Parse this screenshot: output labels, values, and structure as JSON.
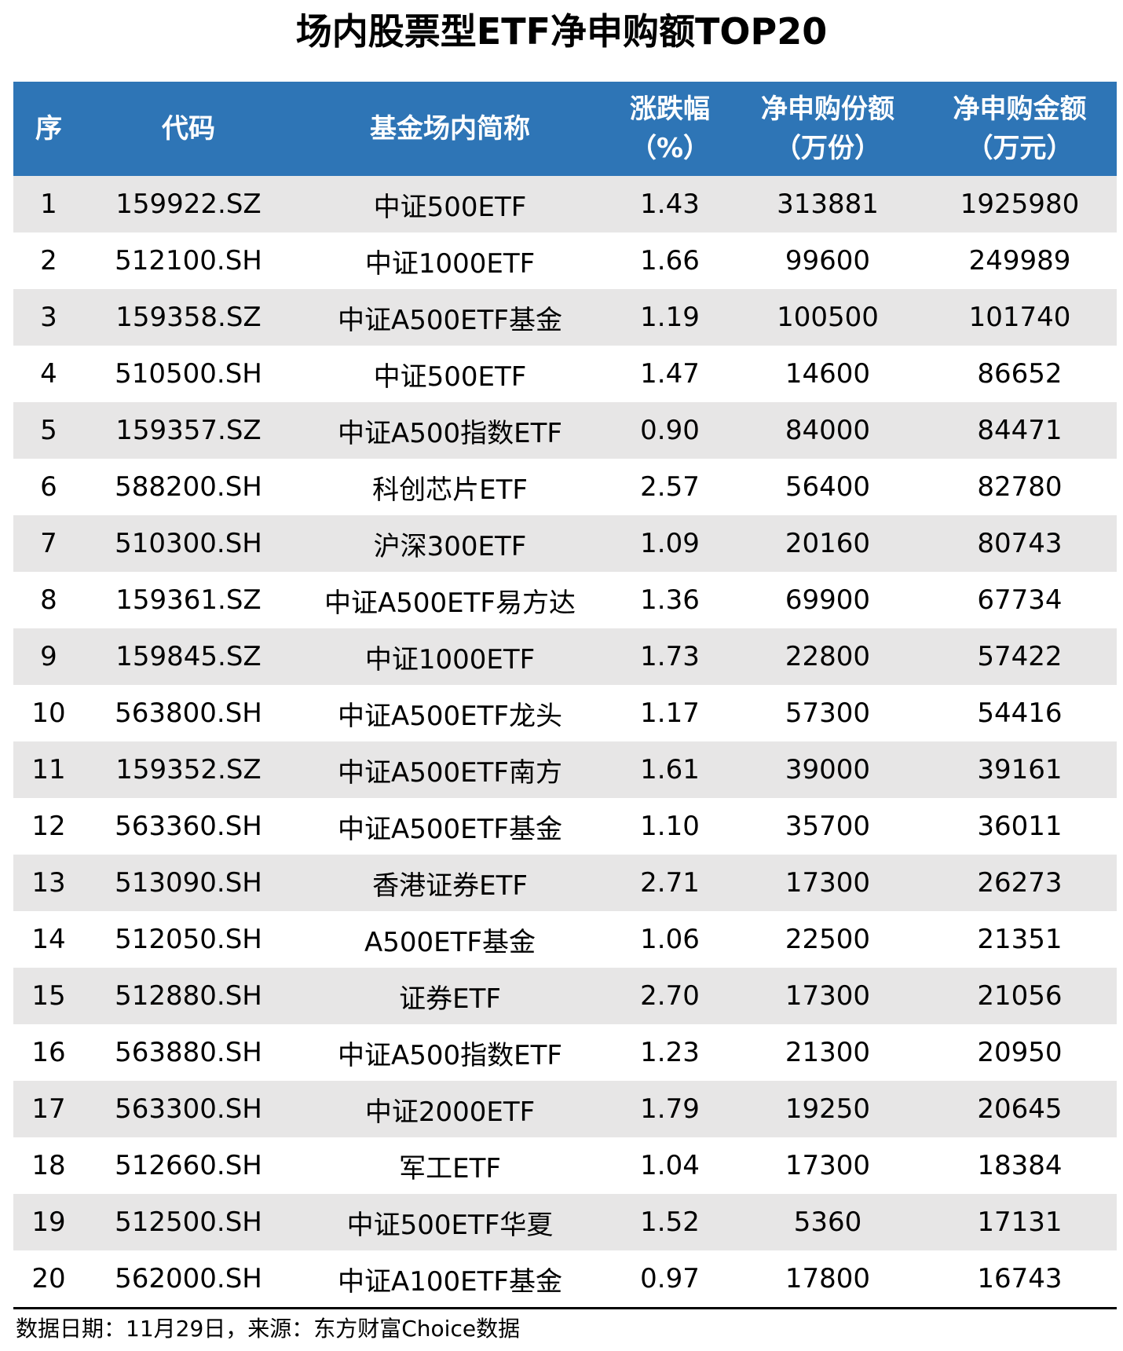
{
  "title": "场内股票型ETF净申购额TOP20",
  "colors": {
    "header_bg": "#2E75B6",
    "stripe": "#E7E6E6"
  },
  "headers": [
    {
      "l1": "序",
      "l2": ""
    },
    {
      "l1": "代码",
      "l2": ""
    },
    {
      "l1": "基金场内简称",
      "l2": ""
    },
    {
      "l1": "涨跌幅",
      "l2": "（%）"
    },
    {
      "l1": "净申购份额",
      "l2": "（万份）"
    },
    {
      "l1": "净申购金额",
      "l2": "（万元）"
    }
  ],
  "rows": [
    [
      "1",
      "159922.SZ",
      "中证500ETF",
      "1.43",
      "313881",
      "1925980"
    ],
    [
      "2",
      "512100.SH",
      "中证1000ETF",
      "1.66",
      "99600",
      "249989"
    ],
    [
      "3",
      "159358.SZ",
      "中证A500ETF基金",
      "1.19",
      "100500",
      "101740"
    ],
    [
      "4",
      "510500.SH",
      "中证500ETF",
      "1.47",
      "14600",
      "86652"
    ],
    [
      "5",
      "159357.SZ",
      "中证A500指数ETF",
      "0.90",
      "84000",
      "84471"
    ],
    [
      "6",
      "588200.SH",
      "科创芯片ETF",
      "2.57",
      "56400",
      "82780"
    ],
    [
      "7",
      "510300.SH",
      "沪深300ETF",
      "1.09",
      "20160",
      "80743"
    ],
    [
      "8",
      "159361.SZ",
      "中证A500ETF易方达",
      "1.36",
      "69900",
      "67734"
    ],
    [
      "9",
      "159845.SZ",
      "中证1000ETF",
      "1.73",
      "22800",
      "57422"
    ],
    [
      "10",
      "563800.SH",
      "中证A500ETF龙头",
      "1.17",
      "57300",
      "54416"
    ],
    [
      "11",
      "159352.SZ",
      "中证A500ETF南方",
      "1.61",
      "39000",
      "39161"
    ],
    [
      "12",
      "563360.SH",
      "中证A500ETF基金",
      "1.10",
      "35700",
      "36011"
    ],
    [
      "13",
      "513090.SH",
      "香港证券ETF",
      "2.71",
      "17300",
      "26273"
    ],
    [
      "14",
      "512050.SH",
      "A500ETF基金",
      "1.06",
      "22500",
      "21351"
    ],
    [
      "15",
      "512880.SH",
      "证券ETF",
      "2.70",
      "17300",
      "21056"
    ],
    [
      "16",
      "563880.SH",
      "中证A500指数ETF",
      "1.23",
      "21300",
      "20950"
    ],
    [
      "17",
      "563300.SH",
      "中证2000ETF",
      "1.79",
      "19250",
      "20645"
    ],
    [
      "18",
      "512660.SH",
      "军工ETF",
      "1.04",
      "17300",
      "18384"
    ],
    [
      "19",
      "512500.SH",
      "中证500ETF华夏",
      "1.52",
      "5360",
      "17131"
    ],
    [
      "20",
      "562000.SH",
      "中证A100ETF基金",
      "0.97",
      "17800",
      "16743"
    ]
  ],
  "footer": "数据日期：11月29日，来源：东方财富Choice数据"
}
